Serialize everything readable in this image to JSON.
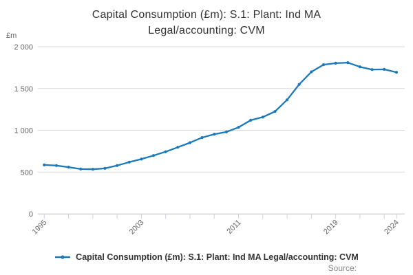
{
  "header": {
    "title": "Capital Consumption (£m): S.1: Plant: Ind MA Legal/accounting: CVM"
  },
  "y_axis": {
    "unit_label": "£m",
    "ticks": [
      {
        "value": 0,
        "label": "0"
      },
      {
        "value": 500,
        "label": "500"
      },
      {
        "value": 1000,
        "label": "1 000"
      },
      {
        "value": 1500,
        "label": "1 500"
      },
      {
        "value": 2000,
        "label": "2 000"
      }
    ]
  },
  "x_axis": {
    "tick_years": [
      1995,
      1997,
      1999,
      2001,
      2003,
      2005,
      2007,
      2009,
      2011,
      2013,
      2015,
      2017,
      2019,
      2021,
      2023,
      2024
    ],
    "labeled_years": [
      1995,
      2003,
      2011,
      2019,
      2024
    ]
  },
  "legend": {
    "label": "Capital Consumption (£m): S.1: Plant: Ind MA Legal/accounting: CVM"
  },
  "footer": {
    "source_label": "Source:"
  },
  "colors": {
    "series": "#1a79bd",
    "grid": "#d9d9d9",
    "axis": "#ccd3dd",
    "tick_text": "#666666",
    "title_text": "#333333"
  },
  "chart_data": {
    "type": "line",
    "title": "Capital Consumption (£m): S.1: Plant: Ind MA Legal/accounting: CVM",
    "ylabel": "£m",
    "ylim": [
      0,
      2000
    ],
    "y_tick_step": 500,
    "grid": true,
    "legend_position": "bottom",
    "x": [
      1995,
      1996,
      1997,
      1998,
      1999,
      2000,
      2001,
      2002,
      2003,
      2004,
      2005,
      2006,
      2007,
      2008,
      2009,
      2010,
      2011,
      2012,
      2013,
      2014,
      2015,
      2016,
      2017,
      2018,
      2019,
      2020,
      2021,
      2022,
      2023,
      2024
    ],
    "series": [
      {
        "name": "Capital Consumption (£m): S.1: Plant: Ind MA Legal/accounting: CVM",
        "values": [
          585,
          578,
          559,
          536,
          533,
          544,
          578,
          619,
          655,
          698,
          743,
          797,
          852,
          913,
          953,
          980,
          1035,
          1120,
          1158,
          1225,
          1365,
          1550,
          1700,
          1785,
          1803,
          1810,
          1760,
          1727,
          1729,
          1695
        ]
      }
    ]
  }
}
